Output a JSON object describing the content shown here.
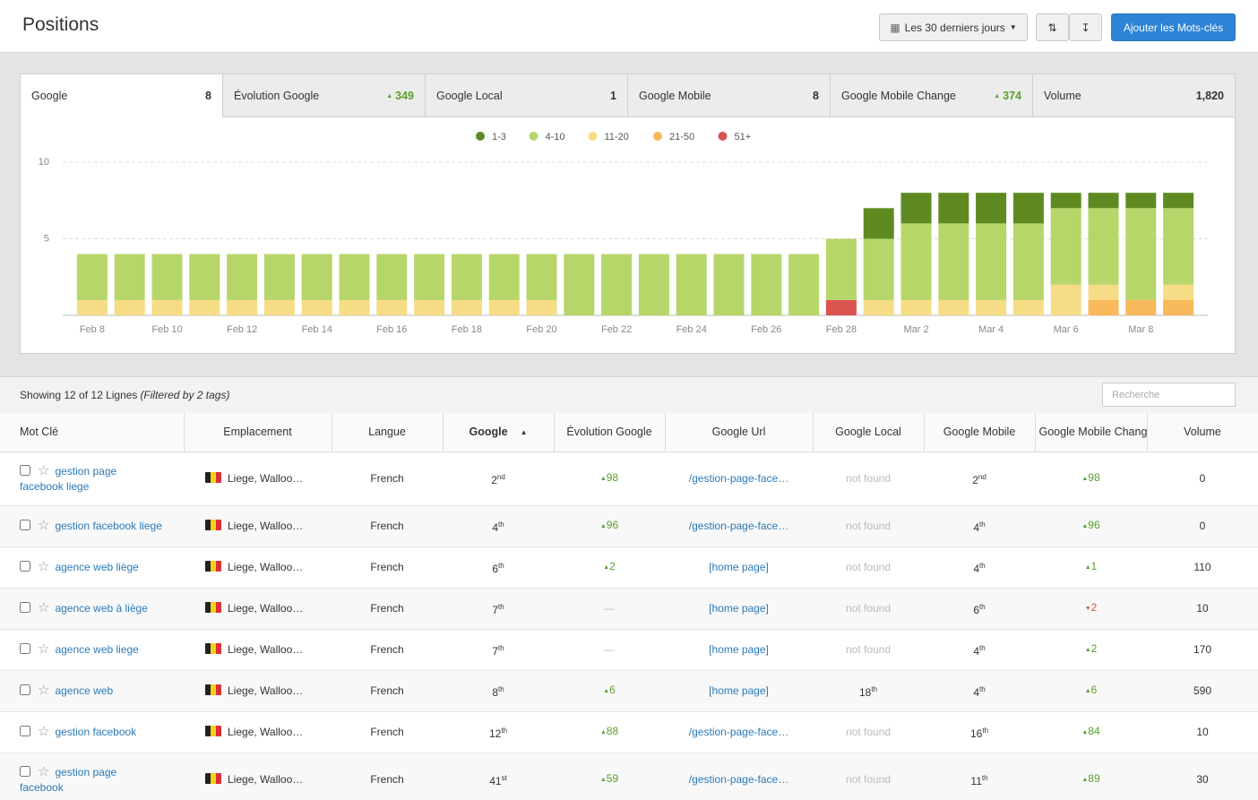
{
  "header": {
    "title": "Positions",
    "date_range": "Les 30 derniers jours",
    "add_button": "Ajouter les Mots-clés"
  },
  "tabs": [
    {
      "label": "Google",
      "value": "8"
    },
    {
      "label": "Évolution Google",
      "value": "349",
      "trend": "up"
    },
    {
      "label": "Google Local",
      "value": "1"
    },
    {
      "label": "Google Mobile",
      "value": "8"
    },
    {
      "label": "Google Mobile Change",
      "value": "374",
      "trend": "up"
    },
    {
      "label": "Volume",
      "value": "1,820"
    }
  ],
  "chart_data": {
    "type": "stacked_bar",
    "categories": [
      "Feb 8",
      null,
      "Feb 10",
      null,
      "Feb 12",
      null,
      "Feb 14",
      null,
      "Feb 16",
      null,
      "Feb 18",
      null,
      "Feb 20",
      null,
      "Feb 22",
      null,
      "Feb 24",
      null,
      "Feb 26",
      null,
      "Feb 28",
      null,
      "Mar 2",
      null,
      "Mar 4",
      null,
      "Mar 6",
      null,
      "Mar 8",
      null
    ],
    "series": [
      {
        "name": "1-3",
        "color": "#5f8a22",
        "values": [
          0,
          0,
          0,
          0,
          0,
          0,
          0,
          0,
          0,
          0,
          0,
          0,
          0,
          0,
          0,
          0,
          0,
          0,
          0,
          0,
          0,
          2,
          2,
          2,
          2,
          2,
          1,
          1,
          1,
          1
        ]
      },
      {
        "name": "4-10",
        "color": "#b7d66a",
        "values": [
          3,
          3,
          3,
          3,
          3,
          3,
          3,
          3,
          3,
          3,
          3,
          3,
          3,
          4,
          4,
          4,
          4,
          4,
          4,
          4,
          4,
          4,
          5,
          5,
          5,
          5,
          5,
          5,
          6,
          5
        ]
      },
      {
        "name": "11-20",
        "color": "#f6dc85",
        "values": [
          1,
          1,
          1,
          1,
          1,
          1,
          1,
          1,
          1,
          1,
          1,
          1,
          1,
          0,
          0,
          0,
          0,
          0,
          0,
          0,
          0,
          1,
          1,
          1,
          1,
          1,
          2,
          1,
          0,
          1
        ]
      },
      {
        "name": "21-50",
        "color": "#f8b95c",
        "values": [
          0,
          0,
          0,
          0,
          0,
          0,
          0,
          0,
          0,
          0,
          0,
          0,
          0,
          0,
          0,
          0,
          0,
          0,
          0,
          0,
          0,
          0,
          0,
          0,
          0,
          0,
          0,
          1,
          1,
          1
        ]
      },
      {
        "name": "51+",
        "color": "#d9534f",
        "values": [
          0,
          0,
          0,
          0,
          0,
          0,
          0,
          0,
          0,
          0,
          0,
          0,
          0,
          0,
          0,
          0,
          0,
          0,
          0,
          0,
          1,
          0,
          0,
          0,
          0,
          0,
          0,
          0,
          0,
          0
        ]
      }
    ],
    "ylim": [
      0,
      10
    ],
    "yticks": [
      5,
      10
    ],
    "grid": true
  },
  "table": {
    "summary": "Showing 12 of 12 Lignes",
    "filter_note": "(Filtered by 2 tags)",
    "search_placeholder": "Recherche",
    "columns": [
      "Mot Clé",
      "Emplacement",
      "Langue",
      "Google",
      "Évolution Google",
      "Google Url",
      "Google Local",
      "Google Mobile",
      "Google Mobile Change",
      "Volume"
    ],
    "rows": [
      {
        "keyword": "gestion page facebook liege",
        "location": "Liege, Walloo…",
        "language": "French",
        "google": [
          "2",
          "nd"
        ],
        "evolution": [
          "up",
          "98"
        ],
        "url": "/gestion-page-face…",
        "local": "not found",
        "mobile": [
          "2",
          "nd"
        ],
        "mobile_change": [
          "up",
          "98"
        ],
        "volume": "0"
      },
      {
        "keyword": "gestion facebook liege",
        "location": "Liege, Walloo…",
        "language": "French",
        "google": [
          "4",
          "th"
        ],
        "evolution": [
          "up",
          "96"
        ],
        "url": "/gestion-page-face…",
        "local": "not found",
        "mobile": [
          "4",
          "th"
        ],
        "mobile_change": [
          "up",
          "96"
        ],
        "volume": "0"
      },
      {
        "keyword": "agence web liège",
        "location": "Liege, Walloo…",
        "language": "French",
        "google": [
          "6",
          "th"
        ],
        "evolution": [
          "up",
          "2"
        ],
        "url": "[home page]",
        "local": "not found",
        "mobile": [
          "4",
          "th"
        ],
        "mobile_change": [
          "up",
          "1"
        ],
        "volume": "110"
      },
      {
        "keyword": "agence web à liège",
        "location": "Liege, Walloo…",
        "language": "French",
        "google": [
          "7",
          "th"
        ],
        "evolution": [
          "none",
          "—"
        ],
        "url": "[home page]",
        "local": "not found",
        "mobile": [
          "6",
          "th"
        ],
        "mobile_change": [
          "down",
          "2"
        ],
        "volume": "10"
      },
      {
        "keyword": "agence web liege",
        "location": "Liege, Walloo…",
        "language": "French",
        "google": [
          "7",
          "th"
        ],
        "evolution": [
          "none",
          "—"
        ],
        "url": "[home page]",
        "local": "not found",
        "mobile": [
          "4",
          "th"
        ],
        "mobile_change": [
          "up",
          "2"
        ],
        "volume": "170"
      },
      {
        "keyword": "agence web",
        "location": "Liege, Walloo…",
        "language": "French",
        "google": [
          "8",
          "th"
        ],
        "evolution": [
          "up",
          "6"
        ],
        "url": "[home page]",
        "local": [
          "18",
          "th"
        ],
        "mobile": [
          "4",
          "th"
        ],
        "mobile_change": [
          "up",
          "6"
        ],
        "volume": "590"
      },
      {
        "keyword": "gestion facebook",
        "location": "Liege, Walloo…",
        "language": "French",
        "google": [
          "12",
          "th"
        ],
        "evolution": [
          "up",
          "88"
        ],
        "url": "/gestion-page-face…",
        "local": "not found",
        "mobile": [
          "16",
          "th"
        ],
        "mobile_change": [
          "up",
          "84"
        ],
        "volume": "10"
      },
      {
        "keyword": "gestion page facebook",
        "location": "Liege, Walloo…",
        "language": "French",
        "google": [
          "41",
          "st"
        ],
        "evolution": [
          "up",
          "59"
        ],
        "url": "/gestion-page-face…",
        "local": "not found",
        "mobile": [
          "11",
          "th"
        ],
        "mobile_change": [
          "up",
          "89"
        ],
        "volume": "30"
      }
    ]
  }
}
